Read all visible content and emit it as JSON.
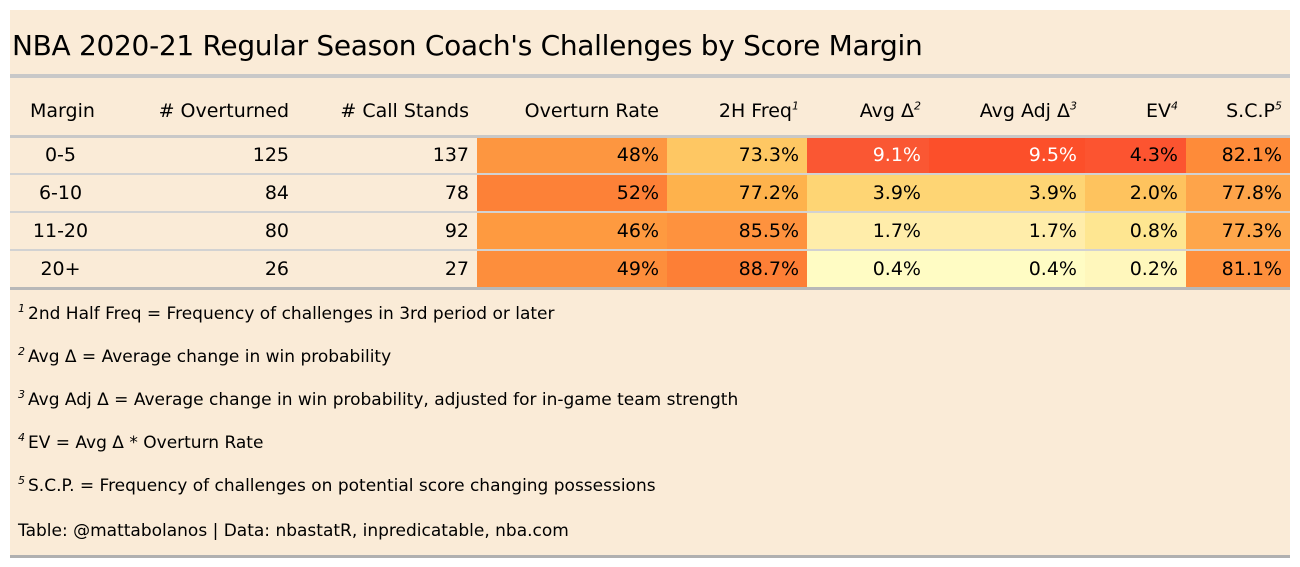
{
  "title": "NBA 2020-21 Regular Season Coach's Challenges by Score Margin",
  "columns": [
    {
      "label": "Margin",
      "sup": ""
    },
    {
      "label": "# Overturned",
      "sup": ""
    },
    {
      "label": "# Call Stands",
      "sup": ""
    },
    {
      "label": "Overturn Rate",
      "sup": ""
    },
    {
      "label": "2H Freq",
      "sup": "1"
    },
    {
      "label": "Avg Δ",
      "sup": "2"
    },
    {
      "label": "Avg Adj Δ",
      "sup": "3"
    },
    {
      "label": "EV",
      "sup": "4"
    },
    {
      "label": "S.C.P",
      "sup": "5"
    }
  ],
  "rows": [
    {
      "margin": "0-5",
      "cells": [
        "125",
        "137",
        "48%",
        "73.3%",
        "9.1%",
        "9.5%",
        "4.3%",
        "82.1%"
      ],
      "colors": [
        "",
        "",
        "#fd9640",
        "#fec763",
        "#fa5733",
        "#fc4f2a",
        "#fc5430",
        "#fe8b39"
      ]
    },
    {
      "margin": "6-10",
      "cells": [
        "84",
        "78",
        "52%",
        "77.2%",
        "3.9%",
        "3.9%",
        "2.0%",
        "77.8%"
      ],
      "colors": [
        "",
        "",
        "#fd8137",
        "#feb24c",
        "#fed574",
        "#fed574",
        "#fec35e",
        "#fea44a"
      ]
    },
    {
      "margin": "11-20",
      "cells": [
        "80",
        "92",
        "46%",
        "85.5%",
        "1.7%",
        "1.7%",
        "0.8%",
        "77.3%"
      ],
      "colors": [
        "",
        "",
        "#fe9a40",
        "#fe923e",
        "#ffedaa",
        "#ffedaa",
        "#fee691",
        "#fea64b"
      ]
    },
    {
      "margin": "20+",
      "cells": [
        "26",
        "27",
        "49%",
        "88.7%",
        "0.4%",
        "0.4%",
        "0.2%",
        "81.1%"
      ],
      "colors": [
        "",
        "",
        "#fd8e3c",
        "#fd7f36",
        "#fffcc4",
        "#fffcc4",
        "#fff7bc",
        "#fe8f3c"
      ]
    }
  ],
  "notes": [
    {
      "sup": "1",
      "text": "2nd Half Freq = Frequency of challenges in 3rd period or later"
    },
    {
      "sup": "2",
      "text": "Avg Δ = Average change in win probability"
    },
    {
      "sup": "3",
      "text": "Avg Adj Δ = Average change in win probability, adjusted for in-game team strength"
    },
    {
      "sup": "4",
      "text": "EV = Avg Δ * Overturn Rate"
    },
    {
      "sup": "5",
      "text": "S.C.P. = Frequency of challenges on potential score changing possessions"
    }
  ],
  "source": "Table: @mattabolanos | Data: nbastatR, inpredicatable, nba.com",
  "chart_data": {
    "type": "table",
    "title": "NBA 2020-21 Regular Season Coach's Challenges by Score Margin",
    "columns": [
      "Margin",
      "# Overturned",
      "# Call Stands",
      "Overturn Rate",
      "2H Freq",
      "Avg Δ",
      "Avg Adj Δ",
      "EV",
      "S.C.P"
    ],
    "categories": [
      "0-5",
      "6-10",
      "11-20",
      "20+"
    ],
    "series": [
      {
        "name": "# Overturned",
        "values": [
          125,
          84,
          80,
          26
        ]
      },
      {
        "name": "# Call Stands",
        "values": [
          137,
          78,
          92,
          27
        ]
      },
      {
        "name": "Overturn Rate",
        "values": [
          48,
          52,
          46,
          49
        ]
      },
      {
        "name": "2H Freq",
        "values": [
          73.3,
          77.2,
          85.5,
          88.7
        ]
      },
      {
        "name": "Avg Δ",
        "values": [
          9.1,
          3.9,
          1.7,
          0.4
        ]
      },
      {
        "name": "Avg Adj Δ",
        "values": [
          9.5,
          3.9,
          1.7,
          0.4
        ]
      },
      {
        "name": "EV",
        "values": [
          4.3,
          2.0,
          0.8,
          0.2
        ]
      },
      {
        "name": "S.C.P",
        "values": [
          82.1,
          77.8,
          77.3,
          81.1
        ]
      }
    ]
  }
}
